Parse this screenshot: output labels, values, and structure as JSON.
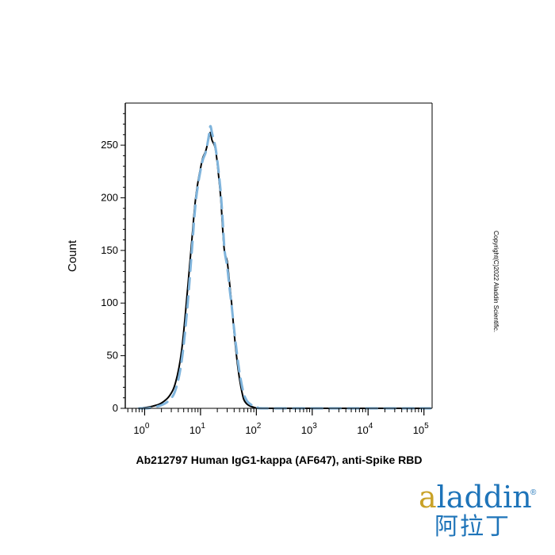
{
  "chart_data": {
    "type": "line",
    "title": "",
    "xlabel": "Ab212797 Human IgG1-kappa (AF647), anti-Spike RBD",
    "ylabel": "Count",
    "x_scale": "log",
    "xlim": [
      0.45,
      140000
    ],
    "ylim": [
      0,
      290
    ],
    "y_ticks": [
      0,
      50,
      100,
      150,
      200,
      250
    ],
    "x_ticks": [
      {
        "base": "10",
        "exp": "0",
        "value": 1
      },
      {
        "base": "10",
        "exp": "1",
        "value": 10
      },
      {
        "base": "10",
        "exp": "2",
        "value": 100
      },
      {
        "base": "10",
        "exp": "3",
        "value": 1000
      },
      {
        "base": "10",
        "exp": "4",
        "value": 10000
      },
      {
        "base": "10",
        "exp": "5",
        "value": 100000
      }
    ],
    "grid": false,
    "legend": "none",
    "series": [
      {
        "color": "#000000",
        "style": "solid",
        "x": [
          0.8,
          1.1,
          1.4,
          2.0,
          2.8,
          3.6,
          4.6,
          5.8,
          7.0,
          8.0,
          9.0,
          10.0,
          11.0,
          12.5,
          14.0,
          15.0,
          16.0,
          17.0,
          18.2,
          19.5,
          21.0,
          23.0,
          25.0,
          27.0,
          30.0,
          33.0,
          36.0,
          40.0,
          45.0,
          50.0,
          55.0,
          60.0,
          68.0,
          78.0,
          90.0,
          105.0,
          130.0,
          1000.0,
          130000.0
        ],
        "y": [
          0,
          1,
          2,
          5,
          12,
          25,
          55,
          110,
          160,
          195,
          215,
          228,
          238,
          245,
          256,
          262,
          255,
          252,
          248,
          238,
          222,
          200,
          170,
          148,
          140,
          120,
          100,
          72,
          46,
          28,
          16,
          8,
          4,
          2,
          1,
          0,
          0,
          0,
          0
        ]
      },
      {
        "color": "#7fb4dc",
        "style": "dashed",
        "x": [
          0.8,
          1.1,
          1.4,
          2.0,
          2.8,
          3.6,
          4.6,
          5.8,
          7.0,
          8.0,
          9.0,
          10.0,
          11.0,
          12.5,
          14.0,
          15.0,
          16.0,
          17.0,
          18.2,
          19.5,
          21.0,
          23.0,
          25.0,
          27.0,
          30.0,
          33.0,
          36.0,
          40.0,
          45.0,
          50.0,
          55.0,
          60.0,
          68.0,
          78.0,
          90.0,
          105.0,
          130.0,
          1000.0,
          130000.0
        ],
        "y": [
          0,
          0,
          1,
          3,
          8,
          18,
          45,
          95,
          150,
          190,
          212,
          226,
          236,
          244,
          258,
          268,
          262,
          256,
          250,
          240,
          226,
          205,
          178,
          150,
          135,
          115,
          98,
          75,
          52,
          34,
          22,
          13,
          7,
          4,
          2,
          1,
          0,
          0,
          0
        ]
      }
    ]
  },
  "copyright": "Copyright(C)2022 Aladdin Scientific.",
  "brand": {
    "first_letter": "a",
    "rest": "laddin",
    "registered": "®",
    "chinese": "阿拉丁"
  }
}
